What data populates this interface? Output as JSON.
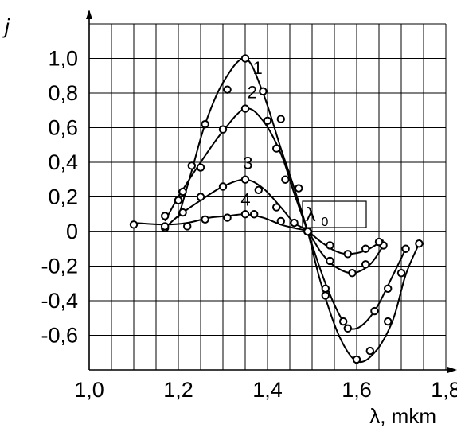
{
  "chart_data": {
    "type": "line",
    "title": "",
    "xlabel": "λ, mkm",
    "ylabel": "j",
    "xlim": [
      1.0,
      1.8
    ],
    "ylim": [
      -0.8,
      1.2
    ],
    "grid": true,
    "x_ticks": [
      {
        "value": 1.0,
        "label": "1,0"
      },
      {
        "value": 1.2,
        "label": "1,2"
      },
      {
        "value": 1.4,
        "label": "1,4"
      },
      {
        "value": 1.6,
        "label": "1,6"
      },
      {
        "value": 1.8,
        "label": "1,8"
      }
    ],
    "y_ticks": [
      {
        "value": 1.0,
        "label": "1,0"
      },
      {
        "value": 0.8,
        "label": "0,8"
      },
      {
        "value": 0.6,
        "label": "0,6"
      },
      {
        "value": 0.4,
        "label": "0,4"
      },
      {
        "value": 0.2,
        "label": "0,2"
      },
      {
        "value": 0.0,
        "label": "0"
      },
      {
        "value": -0.2,
        "label": "-0,2"
      },
      {
        "value": -0.4,
        "label": "-0,4"
      },
      {
        "value": -0.6,
        "label": "-0,6"
      }
    ],
    "series": [
      {
        "name": "1",
        "x": [
          1.2,
          1.23,
          1.26,
          1.3,
          1.35,
          1.39,
          1.43,
          1.46,
          1.49,
          1.52,
          1.56,
          1.6,
          1.64,
          1.68,
          1.71,
          1.74
        ],
        "y": [
          0.08,
          0.35,
          0.62,
          0.86,
          1.0,
          0.8,
          0.48,
          0.25,
          0.0,
          -0.3,
          -0.6,
          -0.75,
          -0.7,
          -0.52,
          -0.25,
          -0.07
        ],
        "markers_x": [
          1.2,
          1.23,
          1.26,
          1.31,
          1.35,
          1.39,
          1.42,
          1.44,
          1.47,
          1.49,
          1.53,
          1.57,
          1.6,
          1.63,
          1.67,
          1.7,
          1.74
        ],
        "markers_y": [
          0.18,
          0.38,
          0.62,
          0.82,
          1.0,
          0.81,
          0.48,
          0.3,
          0.25,
          0.0,
          -0.37,
          -0.52,
          -0.74,
          -0.69,
          -0.52,
          -0.24,
          -0.07
        ]
      },
      {
        "name": "2",
        "x": [
          1.17,
          1.2,
          1.25,
          1.3,
          1.35,
          1.39,
          1.43,
          1.46,
          1.49,
          1.53,
          1.57,
          1.6,
          1.64,
          1.68,
          1.71
        ],
        "y": [
          0.06,
          0.2,
          0.4,
          0.58,
          0.71,
          0.64,
          0.45,
          0.22,
          0.0,
          -0.3,
          -0.52,
          -0.56,
          -0.46,
          -0.26,
          -0.1
        ],
        "markers_x": [
          1.17,
          1.21,
          1.25,
          1.3,
          1.35,
          1.4,
          1.43,
          1.49,
          1.53,
          1.58,
          1.64,
          1.67,
          1.71
        ],
        "markers_y": [
          0.09,
          0.23,
          0.37,
          0.59,
          0.71,
          0.64,
          0.65,
          0.0,
          -0.33,
          -0.56,
          -0.46,
          -0.33,
          -0.1
        ]
      },
      {
        "name": "3",
        "x": [
          1.17,
          1.2,
          1.25,
          1.3,
          1.35,
          1.39,
          1.43,
          1.46,
          1.49,
          1.52,
          1.55,
          1.59,
          1.63,
          1.66
        ],
        "y": [
          0.02,
          0.09,
          0.18,
          0.26,
          0.3,
          0.25,
          0.14,
          0.05,
          0.0,
          -0.12,
          -0.2,
          -0.24,
          -0.19,
          -0.08
        ],
        "markers_x": [
          1.17,
          1.21,
          1.25,
          1.3,
          1.35,
          1.38,
          1.42,
          1.46,
          1.49,
          1.54,
          1.59,
          1.62,
          1.66
        ],
        "markers_y": [
          0.02,
          0.11,
          0.2,
          0.26,
          0.3,
          0.24,
          0.14,
          0.05,
          0.0,
          -0.17,
          -0.24,
          -0.19,
          -0.08
        ]
      },
      {
        "name": "4",
        "x": [
          1.1,
          1.17,
          1.22,
          1.27,
          1.31,
          1.35,
          1.39,
          1.43,
          1.46,
          1.49,
          1.52,
          1.55,
          1.58,
          1.62,
          1.66
        ],
        "y": [
          0.05,
          0.04,
          0.05,
          0.08,
          0.09,
          0.1,
          0.08,
          0.04,
          0.02,
          0.0,
          -0.06,
          -0.11,
          -0.13,
          -0.11,
          -0.05
        ],
        "markers_x": [
          1.1,
          1.17,
          1.22,
          1.26,
          1.31,
          1.35,
          1.37,
          1.43,
          1.49,
          1.54,
          1.58,
          1.62,
          1.65
        ],
        "markers_y": [
          0.04,
          0.03,
          0.03,
          0.07,
          0.08,
          0.1,
          0.1,
          0.06,
          0.0,
          -0.08,
          -0.13,
          -0.1,
          -0.06
        ]
      }
    ],
    "series_label_positions": [
      {
        "text": "1",
        "x": 1.367,
        "y": 0.91
      },
      {
        "text": "2",
        "x": 1.355,
        "y": 0.77
      },
      {
        "text": "3",
        "x": 1.345,
        "y": 0.36
      },
      {
        "text": "4",
        "x": 1.34,
        "y": 0.15
      }
    ],
    "annotation": {
      "text": "λ",
      "subscript": "0",
      "x": 1.5,
      "y": 0.0
    }
  }
}
